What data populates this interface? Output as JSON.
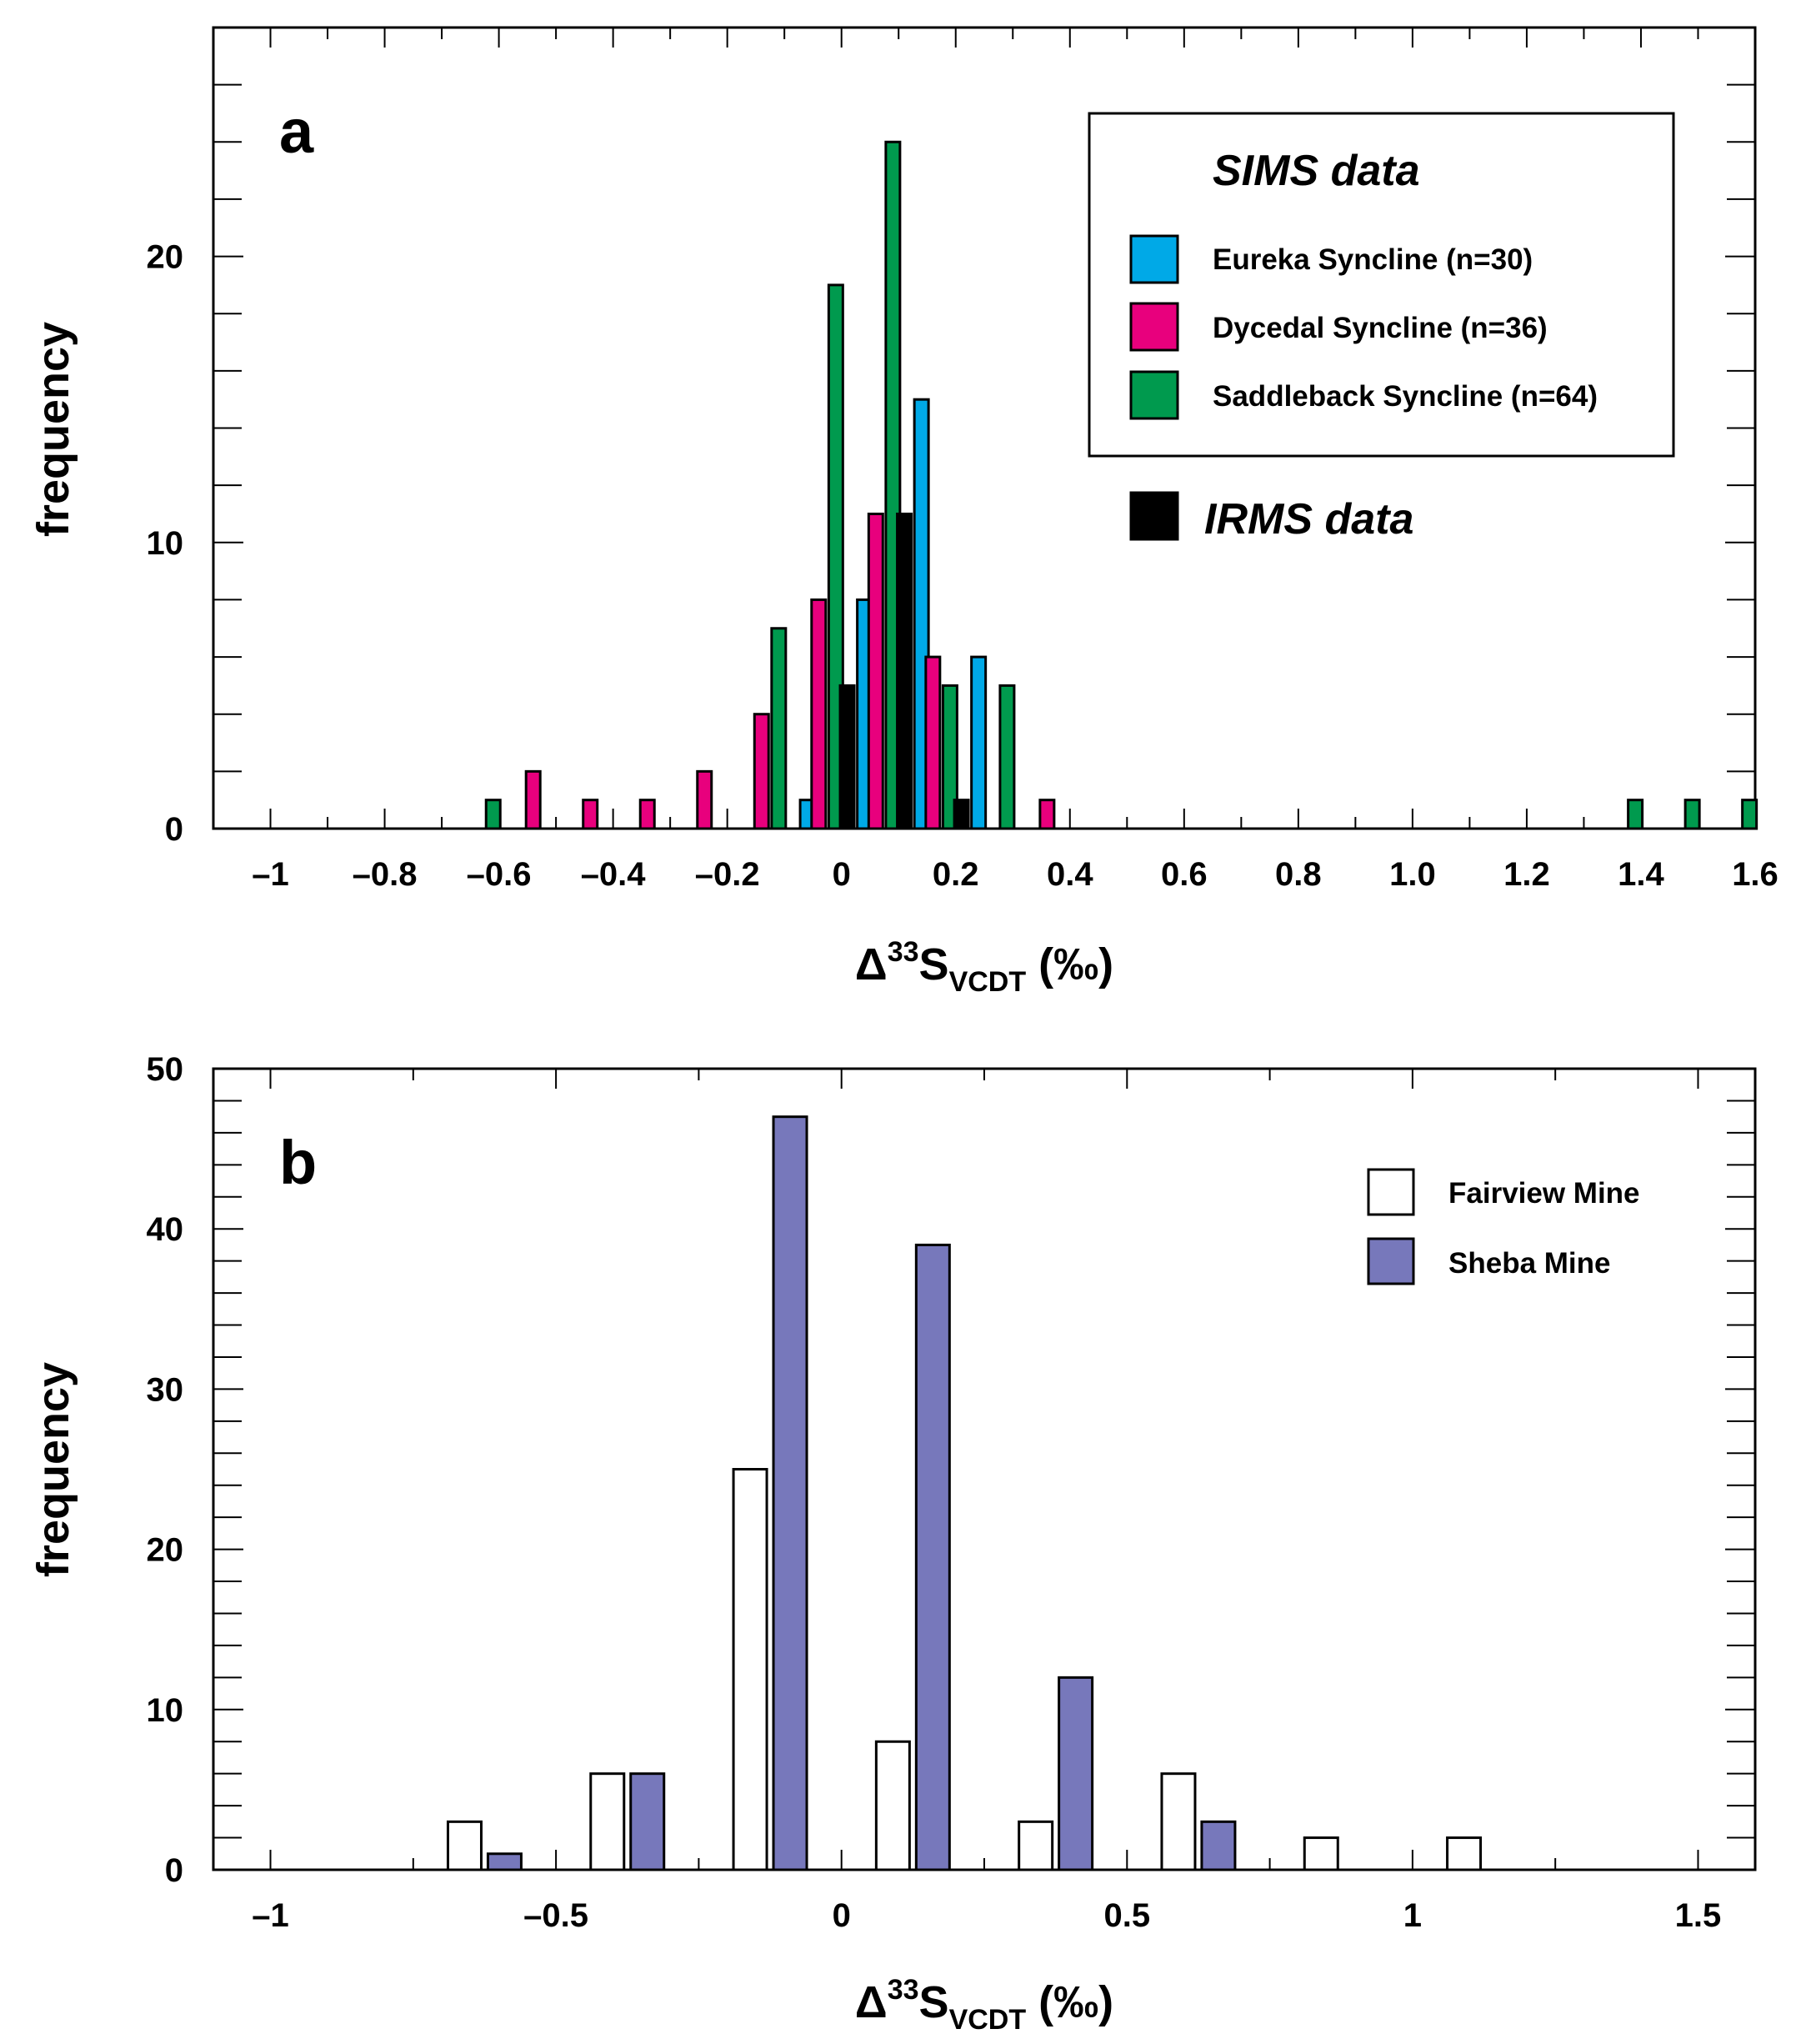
{
  "chart_data": [
    {
      "type": "bar",
      "panel_label": "a",
      "xlabel": {
        "delta": "Δ",
        "sup": "33",
        "s": "S",
        "sub": "VCDT",
        "unit": " (‰)"
      },
      "ylabel": "frequency",
      "xlim": [
        -1.1,
        1.6
      ],
      "ylim": [
        0,
        28
      ],
      "xticks": [
        -1,
        -0.8,
        -0.6,
        -0.4,
        -0.2,
        0,
        0.2,
        0.4,
        0.6,
        0.8,
        1.0,
        1.2,
        1.4,
        1.6
      ],
      "xtick_labels": [
        "–1",
        "–0.8",
        "–0.6",
        "–0.4",
        "–0.2",
        "0",
        "0.2",
        "0.4",
        "0.6",
        "0.8",
        "1.0",
        "1.2",
        "1.4",
        "1.6"
      ],
      "yticks": [
        0,
        10,
        20
      ],
      "ytick_labels": [
        "0",
        "10",
        "20"
      ],
      "legend": {
        "heading": "SIMS data",
        "extra_label": "IRMS data",
        "extra_color": "#000000"
      },
      "series": [
        {
          "name": "Eureka Syncline (n=30)",
          "color": "#00a9e7",
          "x": [
            -0.06,
            0.04,
            0.14,
            0.24
          ],
          "values": [
            1,
            8,
            15,
            6
          ]
        },
        {
          "name": "Dycedal Syncline (n=36)",
          "color": "#e8007d",
          "x": [
            -0.54,
            -0.44,
            -0.34,
            -0.24,
            -0.14,
            -0.04,
            0.06,
            0.16,
            0.36
          ],
          "values": [
            2,
            1,
            1,
            2,
            4,
            8,
            11,
            6,
            1
          ]
        },
        {
          "name": "Saddleback Syncline (n=64)",
          "color": "#009a4e",
          "x": [
            -0.61,
            -0.11,
            -0.01,
            0.09,
            0.19,
            0.29,
            1.39,
            1.49,
            1.59
          ],
          "values": [
            1,
            7,
            19,
            24,
            5,
            5,
            1,
            1,
            1
          ]
        },
        {
          "name": "IRMS data",
          "color": "#000000",
          "x": [
            0.01,
            0.11,
            0.21
          ],
          "values": [
            5,
            11,
            1
          ]
        }
      ]
    },
    {
      "type": "bar",
      "panel_label": "b",
      "xlabel": {
        "delta": "Δ",
        "sup": "33",
        "s": "S",
        "sub": "VCDT",
        "unit": " (‰)"
      },
      "ylabel": "frequency",
      "xlim": [
        -1.1,
        1.6
      ],
      "ylim": [
        0,
        50
      ],
      "xticks": [
        -1,
        -0.5,
        0,
        0.5,
        1,
        1.5
      ],
      "xtick_labels": [
        "–1",
        "–0.5",
        "0",
        "0.5",
        "1",
        "1.5"
      ],
      "yticks": [
        0,
        10,
        20,
        30,
        40,
        50
      ],
      "ytick_labels": [
        "0",
        "10",
        "20",
        "30",
        "40",
        "50"
      ],
      "series": [
        {
          "name": "Fairview Mine",
          "color": "#ffffff",
          "x": [
            -0.66,
            -0.41,
            -0.16,
            0.09,
            0.34,
            0.59,
            0.84,
            1.09
          ],
          "values": [
            3,
            6,
            25,
            8,
            3,
            6,
            2,
            2
          ]
        },
        {
          "name": "Sheba Mine",
          "color": "#7778bb",
          "x": [
            -0.59,
            -0.34,
            -0.09,
            0.16,
            0.41,
            0.66
          ],
          "values": [
            1,
            6,
            47,
            39,
            12,
            3
          ]
        }
      ]
    }
  ]
}
